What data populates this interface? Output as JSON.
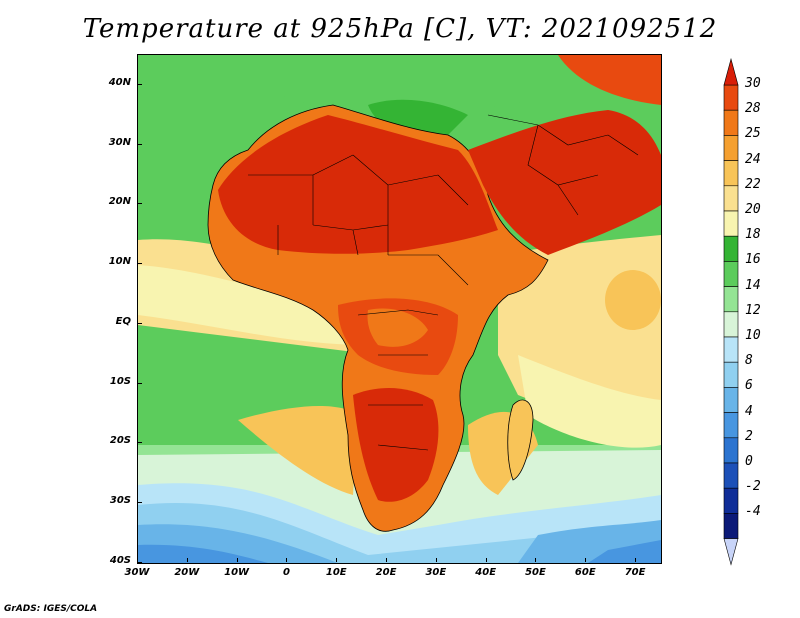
{
  "title": "Temperature at 925hPa [C], VT: 2021092512",
  "credit": "GrADS: IGES/COLA",
  "map": {
    "projection": "lat-lon",
    "lon_range": [
      -30,
      75
    ],
    "lat_range": [
      -40,
      45
    ],
    "x_ticks": [
      {
        "value": -30,
        "label": "30W"
      },
      {
        "value": -20,
        "label": "20W"
      },
      {
        "value": -10,
        "label": "10W"
      },
      {
        "value": 0,
        "label": "0"
      },
      {
        "value": 10,
        "label": "10E"
      },
      {
        "value": 20,
        "label": "20E"
      },
      {
        "value": 30,
        "label": "30E"
      },
      {
        "value": 40,
        "label": "40E"
      },
      {
        "value": 50,
        "label": "50E"
      },
      {
        "value": 60,
        "label": "60E"
      },
      {
        "value": 70,
        "label": "70E"
      }
    ],
    "y_ticks": [
      {
        "value": 40,
        "label": "40N"
      },
      {
        "value": 30,
        "label": "30N"
      },
      {
        "value": 20,
        "label": "20N"
      },
      {
        "value": 10,
        "label": "10N"
      },
      {
        "value": 0,
        "label": "EQ"
      },
      {
        "value": -10,
        "label": "10S"
      },
      {
        "value": -20,
        "label": "20S"
      },
      {
        "value": -30,
        "label": "30S"
      },
      {
        "value": -40,
        "label": "40S"
      }
    ]
  },
  "colorbar": {
    "labels": [
      "30",
      "28",
      "25",
      "24",
      "22",
      "20",
      "18",
      "16",
      "14",
      "12",
      "10",
      "8",
      "6",
      "4",
      "2",
      "0",
      "-2",
      "-4"
    ],
    "colors": [
      "#d82a08",
      "#e84a10",
      "#f07818",
      "#f5a030",
      "#f8c458",
      "#fae090",
      "#f8f4b0",
      "#34b434",
      "#5ccc5c",
      "#94e494",
      "#d8f4d8",
      "#b8e4f8",
      "#90d0f0",
      "#68b4e8",
      "#4896e0",
      "#2c74d0",
      "#1c50b8",
      "#102e98",
      "#0c1a78"
    ],
    "top_color": "#d81e08",
    "bottom_color": "#c8d4f8"
  }
}
